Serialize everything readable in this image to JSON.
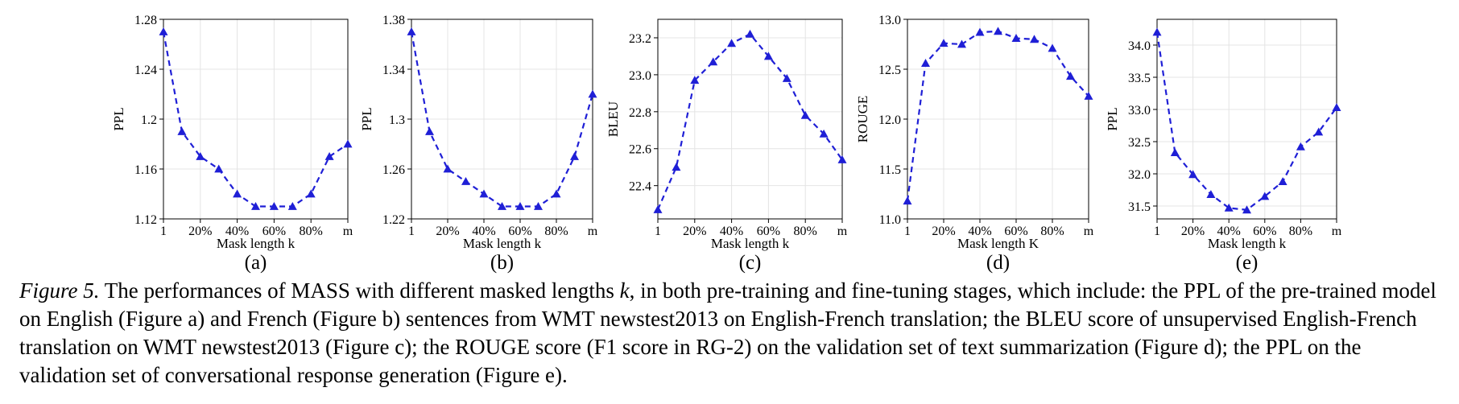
{
  "chart_data": [
    {
      "type": "line",
      "panel_label": "(a)",
      "xlabel": "Mask length k",
      "ylabel": "PPL",
      "x_ticks": [
        "1",
        "20%",
        "40%",
        "60%",
        "80%",
        "m"
      ],
      "y_ticks": [
        "1.12",
        "1.16",
        "1.2",
        "1.24",
        "1.28"
      ],
      "ylim": [
        1.12,
        1.28
      ],
      "x": [
        "1",
        "10%",
        "20%",
        "30%",
        "40%",
        "50%",
        "60%",
        "70%",
        "80%",
        "90%",
        "m"
      ],
      "values": [
        1.27,
        1.19,
        1.17,
        1.16,
        1.14,
        1.13,
        1.13,
        1.13,
        1.14,
        1.17,
        1.18
      ],
      "grid": true,
      "style": {
        "color": "#1f1fd6",
        "line": "dashed",
        "marker": "triangle-up"
      }
    },
    {
      "type": "line",
      "panel_label": "(b)",
      "xlabel": "Mask length k",
      "ylabel": "PPL",
      "x_ticks": [
        "1",
        "20%",
        "40%",
        "60%",
        "80%",
        "m"
      ],
      "y_ticks": [
        "1.22",
        "1.26",
        "1.3",
        "1.34",
        "1.38"
      ],
      "ylim": [
        1.22,
        1.38
      ],
      "x": [
        "1",
        "10%",
        "20%",
        "30%",
        "40%",
        "50%",
        "60%",
        "70%",
        "80%",
        "90%",
        "m"
      ],
      "values": [
        1.37,
        1.29,
        1.26,
        1.25,
        1.24,
        1.23,
        1.23,
        1.23,
        1.24,
        1.27,
        1.32
      ],
      "grid": true,
      "style": {
        "color": "#1f1fd6",
        "line": "dashed",
        "marker": "triangle-up"
      }
    },
    {
      "type": "line",
      "panel_label": "(c)",
      "xlabel": "Mask length k",
      "ylabel": "BLEU",
      "x_ticks": [
        "1",
        "20%",
        "40%",
        "60%",
        "80%",
        "m"
      ],
      "y_ticks": [
        "22.4",
        "22.6",
        "22.8",
        "23.0",
        "23.2"
      ],
      "ylim": [
        22.22,
        23.3
      ],
      "x": [
        "1",
        "10%",
        "20%",
        "30%",
        "40%",
        "50%",
        "60%",
        "70%",
        "80%",
        "90%",
        "m"
      ],
      "values": [
        22.27,
        22.5,
        22.97,
        23.07,
        23.17,
        23.22,
        23.1,
        22.98,
        22.78,
        22.68,
        22.54
      ],
      "grid": true,
      "style": {
        "color": "#1f1fd6",
        "line": "dashed",
        "marker": "triangle-up"
      }
    },
    {
      "type": "line",
      "panel_label": "(d)",
      "xlabel": "Mask length K",
      "ylabel": "ROUGE",
      "x_ticks": [
        "1",
        "20%",
        "40%",
        "60%",
        "80%",
        "m"
      ],
      "y_ticks": [
        "11.0",
        "11.5",
        "12.0",
        "12.5",
        "13.0"
      ],
      "ylim": [
        11.0,
        13.0
      ],
      "x": [
        "1",
        "10%",
        "20%",
        "30%",
        "40%",
        "50%",
        "60%",
        "70%",
        "80%",
        "90%",
        "m"
      ],
      "values": [
        11.18,
        12.56,
        12.76,
        12.75,
        12.87,
        12.88,
        12.81,
        12.8,
        12.71,
        12.43,
        12.23
      ],
      "grid": true,
      "style": {
        "color": "#1f1fd6",
        "line": "dashed",
        "marker": "triangle-up"
      }
    },
    {
      "type": "line",
      "panel_label": "(e)",
      "xlabel": "Mask length k",
      "ylabel": "PPL",
      "x_ticks": [
        "1",
        "20%",
        "40%",
        "60%",
        "80%",
        "m"
      ],
      "y_ticks": [
        "31.5",
        "32.0",
        "32.5",
        "33.0",
        "33.5",
        "34.0"
      ],
      "ylim": [
        31.3,
        34.4
      ],
      "x": [
        "1",
        "10%",
        "20%",
        "30%",
        "40%",
        "50%",
        "60%",
        "70%",
        "80%",
        "90%",
        "m"
      ],
      "values": [
        34.2,
        32.33,
        31.99,
        31.68,
        31.47,
        31.44,
        31.65,
        31.88,
        32.42,
        32.65,
        33.03
      ],
      "grid": true,
      "style": {
        "color": "#1f1fd6",
        "line": "dashed",
        "marker": "triangle-up"
      }
    }
  ],
  "caption": {
    "figure_label": "Figure 5.",
    "part1": " The performances of MASS with different masked lengths ",
    "k_symbol": "k",
    "part2": ", in both pre-training and fine-tuning stages, which include: the PPL of the pre-trained model on English (Figure a) and French (Figure b) sentences from WMT newstest2013 on English-French translation; the BLEU score of unsupervised English-French translation on WMT newstest2013 (Figure c); the ROUGE score (F1 score in RG-2) on the validation set of text summarization (Figure d); the PPL on the validation set of conversational response generation (Figure e)."
  }
}
